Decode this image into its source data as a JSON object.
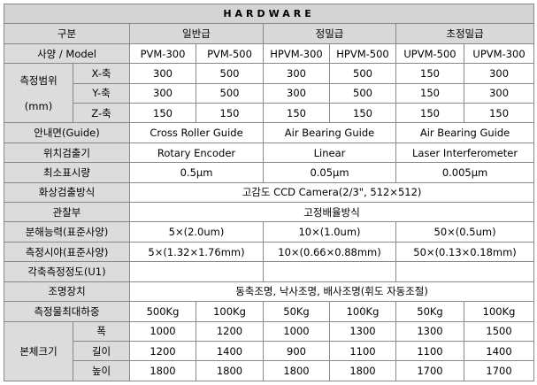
{
  "title": "HARDWARE",
  "header": {
    "category": "구분",
    "general": "일반급",
    "precision": "정밀급",
    "ultra": "초정밀급"
  },
  "model": {
    "label": "사양  /  Model",
    "values": [
      "PVM-300",
      "PVM-500",
      "HPVM-300",
      "HPVM-500",
      "UPVM-500",
      "UPVM-300"
    ]
  },
  "range": {
    "label": "측정범위",
    "unit": "(mm)",
    "x": {
      "label": "X-축",
      "values": [
        "300",
        "500",
        "300",
        "500",
        "150",
        "300"
      ]
    },
    "y": {
      "label": "Y-축",
      "values": [
        "300",
        "500",
        "300",
        "500",
        "150",
        "300"
      ]
    },
    "z": {
      "label": "Z-축",
      "values": [
        "150",
        "150",
        "150",
        "150",
        "150",
        "150"
      ]
    }
  },
  "guide": {
    "label": "안내면(Guide)",
    "values": [
      "Cross Roller Guide",
      "Air Bearing Guide",
      "Air Bearing Guide"
    ]
  },
  "position": {
    "label": "위치검출기",
    "values": [
      "Rotary Encoder",
      "Linear",
      "Laser Interferometer"
    ]
  },
  "min_display": {
    "label": "최소표시량",
    "values": [
      "0.5μm",
      "0.05μm",
      "0.005μm"
    ]
  },
  "image_detect": {
    "label": "화상검출방식",
    "value": "고감도 CCD Camera(2/3\", 512×512)"
  },
  "observation": {
    "label": "관찰부",
    "value": "고정배율방식"
  },
  "resolution": {
    "label": "분해능력(표준사양)",
    "values": [
      "5×(2.0um)",
      "10×(1.0um)",
      "50×(0.5um)"
    ]
  },
  "field_of_view": {
    "label": "측정시야(표준사양)",
    "values": [
      "5×(1.32×1.76mm)",
      "10×(0.66×0.88mm)",
      "50×(0.13×0.18mm)"
    ]
  },
  "accuracy": {
    "label": "각축측정정도(U1)"
  },
  "lighting": {
    "label": "조명장치",
    "value": "동축조명, 낙사조명, 배사조명(휘도 자동조절)"
  },
  "max_load": {
    "label": "측정물최대하중",
    "values": [
      "500Kg",
      "100Kg",
      "50Kg",
      "100Kg",
      "50Kg",
      "100Kg"
    ]
  },
  "body_size": {
    "label": "본체크기",
    "width": {
      "label": "폭",
      "values": [
        "1000",
        "1200",
        "1000",
        "1300",
        "1300",
        "1500"
      ]
    },
    "depth": {
      "label": "길이",
      "values": [
        "1200",
        "1400",
        "900",
        "1100",
        "1100",
        "1400"
      ]
    },
    "height": {
      "label": "높이",
      "values": [
        "1800",
        "1800",
        "1800",
        "1800",
        "1700",
        "1700"
      ]
    }
  }
}
